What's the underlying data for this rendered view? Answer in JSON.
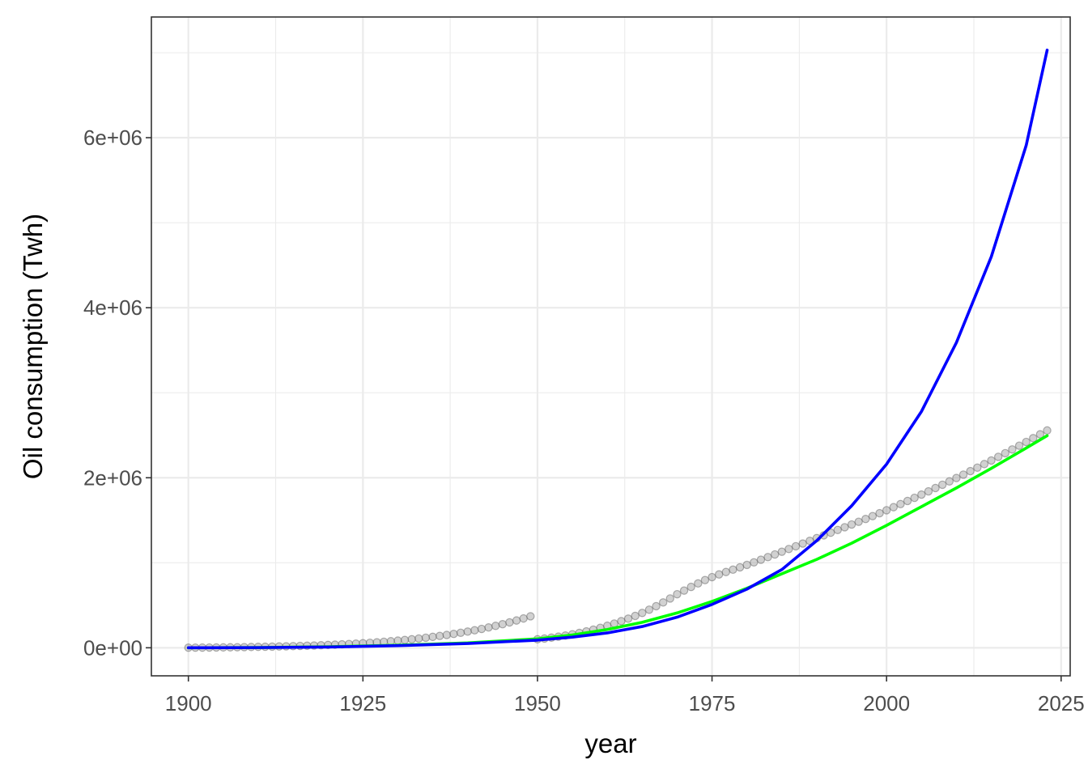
{
  "chart_data": {
    "type": "scatter",
    "title": "",
    "xlabel": "year",
    "ylabel": "Oil consumption (Twh)",
    "xlim": [
      1894.7,
      2026.3
    ],
    "ylim": [
      -330000,
      7420000
    ],
    "x_ticks": [
      1900,
      1925,
      1950,
      1975,
      2000,
      2025
    ],
    "x_tick_labels": [
      "1900",
      "1925",
      "1950",
      "1975",
      "2000",
      "2025"
    ],
    "y_ticks": [
      0,
      2000000,
      4000000,
      6000000
    ],
    "y_tick_labels": [
      "0e+00",
      "2e+06",
      "4e+06",
      "6e+06"
    ],
    "grid": true,
    "legend": "none",
    "series": [
      {
        "kind": "points",
        "color": "#999999",
        "x": [
          1900,
          1901,
          1902,
          1903,
          1904,
          1905,
          1906,
          1907,
          1908,
          1909,
          1910,
          1911,
          1912,
          1913,
          1914,
          1915,
          1916,
          1917,
          1918,
          1919,
          1920,
          1921,
          1922,
          1923,
          1924,
          1925,
          1926,
          1927,
          1928,
          1929,
          1930,
          1931,
          1932,
          1933,
          1934,
          1935,
          1936,
          1937,
          1938,
          1939,
          1940,
          1941,
          1942,
          1943,
          1944,
          1945,
          1946,
          1947,
          1948,
          1949,
          1950,
          1951,
          1952,
          1953,
          1954,
          1955,
          1956,
          1957,
          1958,
          1959,
          1960,
          1961,
          1962,
          1963,
          1964,
          1965,
          1966,
          1967,
          1968,
          1969,
          1970,
          1971,
          1972,
          1973,
          1974,
          1975,
          1976,
          1977,
          1978,
          1979,
          1980,
          1981,
          1982,
          1983,
          1984,
          1985,
          1986,
          1987,
          1988,
          1989,
          1990,
          1991,
          1992,
          1993,
          1994,
          1995,
          1996,
          1997,
          1998,
          1999,
          2000,
          2001,
          2002,
          2003,
          2004,
          2005,
          2006,
          2007,
          2008,
          2009,
          2010,
          2011,
          2012,
          2013,
          2014,
          2015,
          2016,
          2017,
          2018,
          2019,
          2020,
          2021,
          2022,
          2023
        ],
        "y": [
          1000,
          1500,
          2100,
          2800,
          3600,
          4500,
          5500,
          6600,
          7800,
          9100,
          10500,
          12000,
          13600,
          15400,
          17300,
          19400,
          21700,
          24200,
          26900,
          29800,
          33000,
          36500,
          40300,
          44400,
          48800,
          53600,
          58800,
          64400,
          70500,
          77100,
          84200,
          91800,
          100000,
          108800,
          118200,
          128300,
          139100,
          150700,
          163100,
          176400,
          190600,
          205800,
          222000,
          239300,
          257800,
          277500,
          298500,
          320900,
          344800,
          370200,
          100000,
          109000,
          119000,
          131000,
          144000,
          159000,
          175000,
          193000,
          213000,
          235000,
          259000,
          285000,
          313000,
          343000,
          375000,
          410000,
          448000,
          489000,
          533000,
          580000,
          630000,
          673000,
          716000,
          757000,
          796000,
          831000,
          863000,
          891000,
          919000,
          946000,
          975000,
          1005000,
          1036000,
          1067000,
          1098000,
          1130000,
          1162000,
          1194000,
          1226000,
          1258000,
          1290000,
          1322000,
          1354000,
          1386000,
          1418000,
          1450000,
          1482000,
          1515000,
          1549000,
          1583000,
          1618000,
          1654000,
          1690000,
          1727000,
          1764000,
          1802000,
          1840000,
          1879000,
          1918000,
          1957000,
          1997000,
          2037000,
          2078000,
          2119000,
          2161000,
          2203000,
          2246000,
          2289000,
          2333000,
          2377000,
          2421000,
          2466000,
          2511000,
          2556000
        ]
      },
      {
        "kind": "line",
        "name": "",
        "color": "#00ff00",
        "x": [
          1900,
          1910,
          1920,
          1930,
          1940,
          1950,
          1955,
          1960,
          1965,
          1970,
          1975,
          1980,
          1985,
          1990,
          1995,
          2000,
          2005,
          2010,
          2015,
          2020,
          2023
        ],
        "y": [
          0,
          3000,
          12000,
          30000,
          58000,
          105000,
          150000,
          215000,
          300000,
          410000,
          545000,
          700000,
          870000,
          1040000,
          1230000,
          1440000,
          1660000,
          1880000,
          2110000,
          2350000,
          2495000
        ]
      },
      {
        "kind": "line",
        "name": "",
        "color": "#0000ff",
        "x": [
          1900,
          1910,
          1920,
          1930,
          1940,
          1950,
          1955,
          1960,
          1965,
          1970,
          1975,
          1980,
          1985,
          1990,
          1995,
          2000,
          2005,
          2010,
          2015,
          2020,
          2023
        ],
        "y": [
          0,
          2000,
          9000,
          25000,
          50000,
          90000,
          125000,
          175000,
          250000,
          360000,
          510000,
          690000,
          920000,
          1260000,
          1670000,
          2160000,
          2780000,
          3590000,
          4600000,
          5910000,
          7030000
        ]
      }
    ]
  }
}
